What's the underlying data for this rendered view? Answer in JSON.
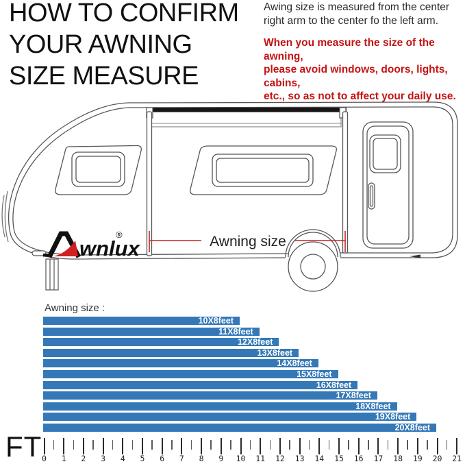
{
  "header": {
    "title_lines": [
      "HOW TO CONFIRM",
      "YOUR AWNING",
      "SIZE MEASURE"
    ],
    "note_lines": [
      "Awing size is measured from the center",
      "right arm to the center fo the left arm."
    ],
    "warning_lines": [
      "When you measure the size of the awning,",
      "please avoid windows, doors, lights, cabins,",
      "etc., so as not to affect your daily use."
    ],
    "warning_color": "#c41414"
  },
  "diagram": {
    "brand_text": "wnlux",
    "brand_reg": "®",
    "brand_accent_color": "#d21f1f",
    "dimension_label": "Awning size",
    "dimension_line_color": "#c32525"
  },
  "chart_data": {
    "type": "bar",
    "orientation": "horizontal",
    "title": "Awning size :",
    "xlabel": "FT",
    "bar_color": "#3478b8",
    "label_color": "#ffffff",
    "categories": [
      "10X8feet",
      "11X8feet",
      "12X8feet",
      "13X8feet",
      "14X8feet",
      "15X8feet",
      "16X8feet",
      "17X8feet",
      "18X8feet",
      "19X8feet",
      "20X8feet"
    ],
    "values": [
      10,
      11,
      12,
      13,
      14,
      15,
      16,
      17,
      18,
      19,
      20
    ],
    "axis": {
      "min": 0,
      "max": 21,
      "tick_step": 1,
      "minor_tick_step": 0.5,
      "tick_labels": [
        "0",
        "1",
        "2",
        "3",
        "4",
        "5",
        "6",
        "7",
        "8",
        "9",
        "10",
        "11",
        "12",
        "13",
        "14",
        "15",
        "16",
        "17",
        "18",
        "19",
        "20",
        "21"
      ],
      "grid": false,
      "legend": "none"
    }
  }
}
